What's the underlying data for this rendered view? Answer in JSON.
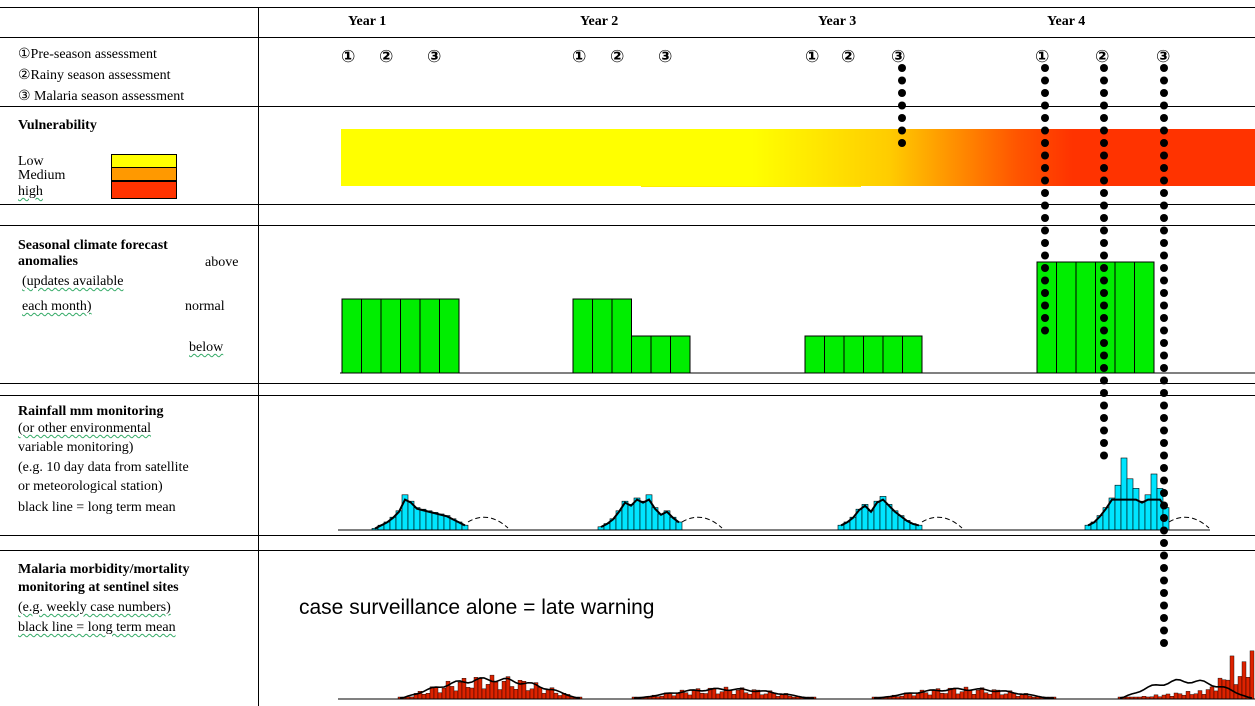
{
  "years": [
    "Year 1",
    "Year 2",
    "Year 3",
    "Year 4"
  ],
  "legend": {
    "pre": "①Pre-season assessment",
    "rainy": "②Rainy season assessment",
    "malaria": "③ Malaria season assessment"
  },
  "assessment_marks": [
    "①",
    "②",
    "③"
  ],
  "vulnerability": {
    "title": "Vulnerability",
    "levels": [
      {
        "label": "Low",
        "color": "#ffff00"
      },
      {
        "label": "Medium",
        "color": "#ff9900"
      },
      {
        "label": "high",
        "color": "#ff3300"
      }
    ]
  },
  "forecast": {
    "title_line1": "Seasonal climate forecast",
    "title_line2": "anomalies",
    "above": "above",
    "updates": "(updates available",
    "each_month": "each month)",
    "normal": "normal",
    "below": "below",
    "bar_color": "#00ee00",
    "levels_per_year": [
      [
        "normal",
        "normal",
        "normal",
        "normal",
        "normal",
        "normal"
      ],
      [
        "normal",
        "normal",
        "normal",
        "below",
        "below",
        "below"
      ],
      [
        "below",
        "below",
        "below",
        "below",
        "below",
        "below"
      ],
      [
        "above",
        "above",
        "above",
        "above",
        "above",
        "above"
      ]
    ]
  },
  "rainfall": {
    "title": "Rainfall mm monitoring",
    "lines": [
      "(or other environmental",
      "variable monitoring)",
      "(e.g. 10 day data from satellite",
      "or meteorological station)",
      "black line = long term mean"
    ],
    "bar_color": "#00e5ff",
    "year_series": [
      [
        1,
        3,
        5,
        8,
        12,
        22,
        18,
        14,
        13,
        12,
        11,
        10,
        9,
        7,
        5,
        3
      ],
      [
        2,
        4,
        7,
        12,
        18,
        16,
        20,
        18,
        22,
        14,
        10,
        12,
        8,
        5
      ],
      [
        3,
        5,
        8,
        13,
        16,
        12,
        18,
        21,
        16,
        12,
        9,
        6,
        4,
        3
      ],
      [
        3,
        5,
        9,
        14,
        20,
        28,
        45,
        32,
        26,
        18,
        22,
        35,
        26,
        14
      ]
    ]
  },
  "malaria": {
    "title_line1": "Malaria morbidity/mortality",
    "title_line2": "monitoring at sentinel sites",
    "lines": [
      "(e.g. weekly case numbers)",
      "black line = long term mean"
    ],
    "bar_color": "#dd2200",
    "note": "case surveillance alone = late warning"
  }
}
